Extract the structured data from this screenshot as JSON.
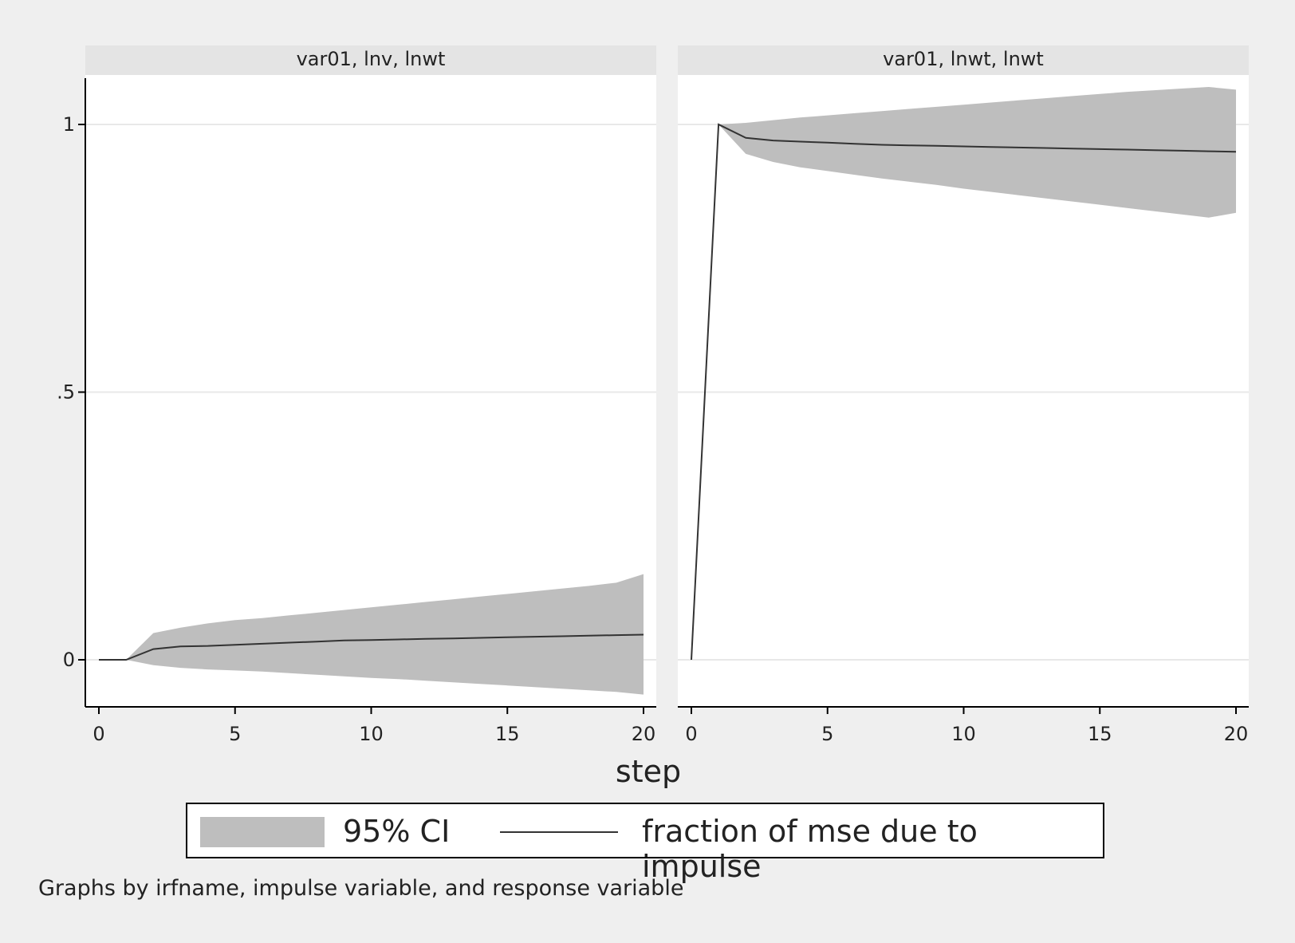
{
  "chart_data": {
    "type": "area",
    "xlabel": "step",
    "ylabel": "",
    "x_ticks": [
      "0",
      "5",
      "10",
      "15",
      "20"
    ],
    "y_ticks": [
      {
        "value": 0,
        "label": "0"
      },
      {
        "value": 0.5,
        "label": ".5"
      },
      {
        "value": 1,
        "label": "1"
      }
    ],
    "xlim": [
      0,
      20
    ],
    "ylim": [
      -0.09,
      1.09
    ],
    "grid": "horizontal",
    "panels": [
      {
        "title": "var01, lnv, lnwt",
        "x": [
          0,
          1,
          2,
          3,
          4,
          5,
          6,
          7,
          8,
          9,
          10,
          11,
          12,
          13,
          14,
          15,
          16,
          17,
          18,
          19,
          20
        ],
        "series": [
          {
            "name": "fraction of mse due to impulse",
            "values": [
              0,
              0,
              0.02,
              0.025,
              0.026,
              0.028,
              0.03,
              0.032,
              0.034,
              0.036,
              0.037,
              0.038,
              0.039,
              0.04,
              0.041,
              0.042,
              0.043,
              0.044,
              0.045,
              0.046,
              0.047
            ]
          },
          {
            "name": "95% CI lower",
            "values": [
              0,
              0,
              -0.01,
              -0.015,
              -0.018,
              -0.02,
              -0.022,
              -0.025,
              -0.028,
              -0.031,
              -0.034,
              -0.036,
              -0.039,
              -0.042,
              -0.045,
              -0.048,
              -0.051,
              -0.054,
              -0.057,
              -0.06,
              -0.065
            ]
          },
          {
            "name": "95% CI upper",
            "values": [
              0,
              0,
              0.05,
              0.06,
              0.068,
              0.074,
              0.078,
              0.083,
              0.088,
              0.093,
              0.098,
              0.103,
              0.108,
              0.113,
              0.118,
              0.123,
              0.128,
              0.133,
              0.138,
              0.144,
              0.16
            ]
          }
        ]
      },
      {
        "title": "var01, lnwt, lnwt",
        "x": [
          0,
          1,
          2,
          3,
          4,
          5,
          6,
          7,
          8,
          9,
          10,
          11,
          12,
          13,
          14,
          15,
          16,
          17,
          18,
          19,
          20
        ],
        "series": [
          {
            "name": "fraction of mse due to impulse",
            "values": [
              0,
              1,
              0.975,
              0.97,
              0.968,
              0.966,
              0.964,
              0.962,
              0.961,
              0.96,
              0.959,
              0.958,
              0.957,
              0.956,
              0.955,
              0.954,
              0.953,
              0.952,
              0.951,
              0.95,
              0.949
            ]
          },
          {
            "name": "95% CI lower",
            "values": [
              0,
              1,
              0.945,
              0.93,
              0.92,
              0.913,
              0.906,
              0.899,
              0.893,
              0.887,
              0.88,
              0.874,
              0.868,
              0.862,
              0.856,
              0.85,
              0.844,
              0.838,
              0.832,
              0.826,
              0.835
            ]
          },
          {
            "name": "95% CI upper",
            "values": [
              0,
              1,
              1.003,
              1.008,
              1.013,
              1.017,
              1.021,
              1.025,
              1.029,
              1.033,
              1.037,
              1.041,
              1.045,
              1.049,
              1.053,
              1.057,
              1.061,
              1.064,
              1.067,
              1.07,
              1.065
            ]
          }
        ]
      }
    ]
  },
  "legend": {
    "ci_label": "95% CI",
    "line_label": "fraction of mse due to impulse",
    "placement": "bottom"
  },
  "note": "Graphs by irfname, impulse variable, and response variable",
  "colors": {
    "background": "#efefef",
    "panel_bg": "#ffffff",
    "strip_bg": "#e4e4e4",
    "ci_fill": "#bebebe",
    "line": "#333333",
    "grid": "#e8e8e8"
  }
}
